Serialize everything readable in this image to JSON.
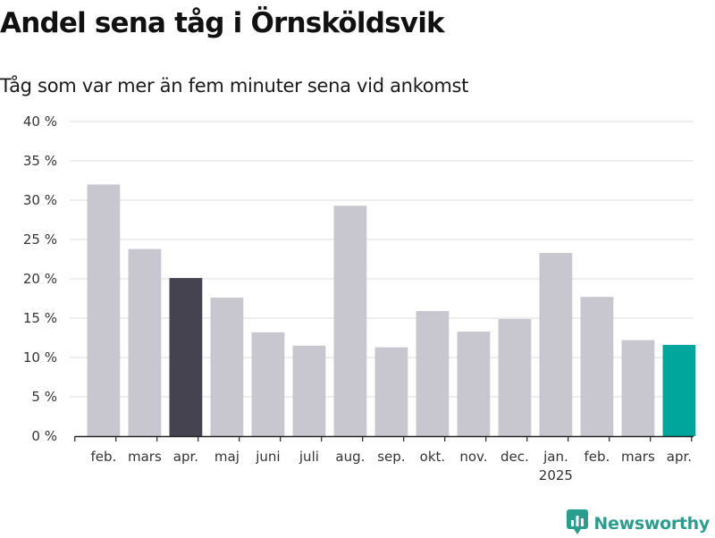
{
  "header": {
    "title": "Andel sena tåg i Örnsköldsvik",
    "subtitle": "Tåg som var mer än fem minuter sena vid ankomst"
  },
  "brand": {
    "name": "Newsworthy",
    "icon": "newsworthy-logo-icon",
    "color": "#2a9d8f"
  },
  "colors": {
    "default_bar": "#c8c7cf",
    "dark_bar": "#44434f",
    "highlight_bar": "#00a69c",
    "grid": "#dddddd",
    "axis": "#222222"
  },
  "chart_data": {
    "type": "bar",
    "title": "Andel sena tåg i Örnsköldsvik",
    "subtitle": "Tåg som var mer än fem minuter sena vid ankomst",
    "xlabel": "",
    "ylabel": "",
    "ylim": [
      0,
      40
    ],
    "yticks": [
      "0 %",
      "5 %",
      "10 %",
      "15 %",
      "20 %",
      "25 %",
      "30 %",
      "35 %",
      "40 %"
    ],
    "grid": true,
    "categories": [
      "feb.",
      "mars",
      "apr.",
      "maj",
      "juni",
      "juli",
      "aug.",
      "sep.",
      "okt.",
      "nov.",
      "dec.",
      "jan.",
      "feb.",
      "mars",
      "apr."
    ],
    "year_labels": [
      {
        "index": 11,
        "label": "2025"
      }
    ],
    "values": [
      32.0,
      23.8,
      20.1,
      17.6,
      13.2,
      11.5,
      29.3,
      11.3,
      15.9,
      13.3,
      14.9,
      23.3,
      17.7,
      12.2,
      11.6
    ],
    "bar_colors": [
      "#c8c7cf",
      "#c8c7cf",
      "#44434f",
      "#c8c7cf",
      "#c8c7cf",
      "#c8c7cf",
      "#c8c7cf",
      "#c8c7cf",
      "#c8c7cf",
      "#c8c7cf",
      "#c8c7cf",
      "#c8c7cf",
      "#c8c7cf",
      "#c8c7cf",
      "#00a69c"
    ]
  }
}
